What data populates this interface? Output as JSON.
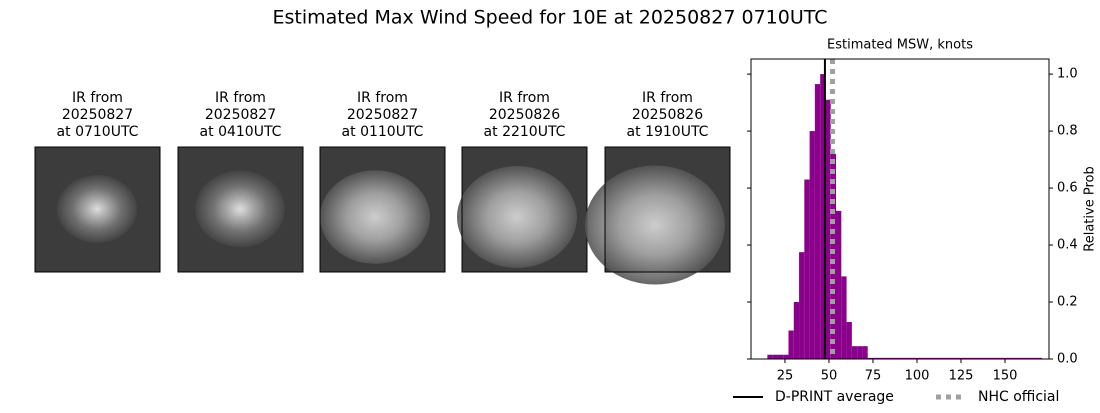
{
  "title": "Estimated Max Wind Speed for 10E at 20250827 0710UTC",
  "panels": [
    {
      "label": [
        "IR from",
        "20250827",
        "at 0710UTC"
      ]
    },
    {
      "label": [
        "IR from",
        "20250827",
        "at 0410UTC"
      ]
    },
    {
      "label": [
        "IR from",
        "20250827",
        "at 0110UTC"
      ]
    },
    {
      "label": [
        "IR from",
        "20250826",
        "at 2210UTC"
      ]
    },
    {
      "label": [
        "IR from",
        "20250826",
        "at 1910UTC"
      ]
    }
  ],
  "chart_data": {
    "type": "histogram",
    "title": "Estimated MSW, knots",
    "y_label": "Relative Prob",
    "color": "#8b008b",
    "bins": [
      15,
      18,
      21,
      24,
      27,
      30,
      33,
      36,
      39,
      42,
      45,
      48,
      51,
      54,
      57,
      60,
      63,
      66,
      69,
      72,
      171
    ],
    "values": [
      0.015,
      0.015,
      0.015,
      0.015,
      0.1,
      0.2,
      0.375,
      0.63,
      0.8,
      0.965,
      1.0,
      0.91,
      0.72,
      0.52,
      0.29,
      0.13,
      0.045,
      0.045,
      0.045,
      0.004
    ],
    "xlim": [
      5.7,
      175
    ],
    "xticks": [
      25,
      50,
      75,
      100,
      125,
      150
    ],
    "ylim": [
      0,
      1.053
    ],
    "yticks": [
      {
        "value": 0,
        "label": "0.0"
      },
      {
        "value": 0.2,
        "label": "0.2"
      },
      {
        "value": 0.4,
        "label": "0.4"
      },
      {
        "value": 0.6,
        "label": "0.6"
      },
      {
        "value": 0.8,
        "label": "0.8"
      },
      {
        "value": 1.0,
        "label": "1.0"
      }
    ],
    "lines": [
      {
        "name": "D-PRINT average",
        "value": 47.7,
        "color": "#000000",
        "style": "solid"
      },
      {
        "name": "NHC official",
        "value": 52,
        "color": "#a0a0a0",
        "style": "dotted"
      }
    ]
  }
}
